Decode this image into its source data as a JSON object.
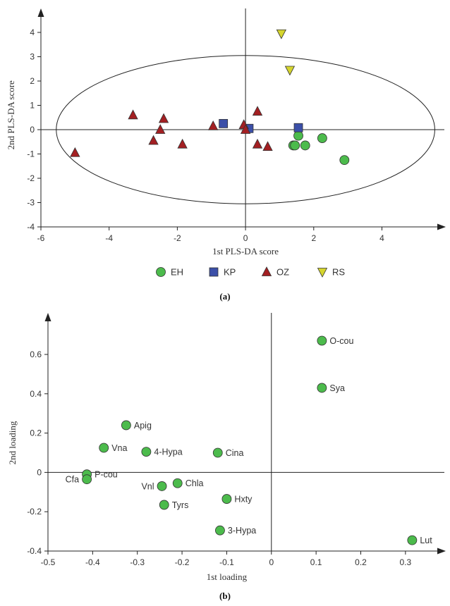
{
  "colors": {
    "EH": "#4cbb4c",
    "KP": "#3b4fa8",
    "OZ": "#a31f22",
    "RS": "#d5d52e",
    "axis": "#222222"
  },
  "chart_data": [
    {
      "type": "scatter",
      "panel_label": "(a)",
      "xlabel": "1st PLS-DA score",
      "ylabel": "2nd PLS-DA score",
      "xlim": [
        -6,
        6
      ],
      "ylim": [
        -4,
        5
      ],
      "xticks": [
        -6,
        -4,
        -2,
        0,
        2,
        4
      ],
      "yticks": [
        -4,
        -3,
        -2,
        -1,
        0,
        1,
        2,
        3,
        4
      ],
      "ellipse": {
        "cx": 0,
        "cy": 0,
        "rx": 5.55,
        "ry": 3.05
      },
      "legend_position": "bottom",
      "series": [
        {
          "name": "EH",
          "marker": "circle",
          "points": [
            [
              1.55,
              -0.25
            ],
            [
              1.4,
              -0.65
            ],
            [
              1.45,
              -0.65
            ],
            [
              1.75,
              -0.65
            ],
            [
              2.25,
              -0.35
            ],
            [
              2.9,
              -1.25
            ]
          ]
        },
        {
          "name": "KP",
          "marker": "square",
          "points": [
            [
              -0.65,
              0.25
            ],
            [
              0.1,
              0.05
            ],
            [
              1.55,
              0.08
            ]
          ]
        },
        {
          "name": "OZ",
          "marker": "triangle-up",
          "points": [
            [
              -5.0,
              -0.95
            ],
            [
              -3.3,
              0.6
            ],
            [
              -2.4,
              0.45
            ],
            [
              -2.5,
              0.0
            ],
            [
              -2.7,
              -0.45
            ],
            [
              -1.85,
              -0.6
            ],
            [
              -0.95,
              0.15
            ],
            [
              -0.05,
              0.2
            ],
            [
              0.0,
              0.0
            ],
            [
              0.35,
              0.75
            ],
            [
              0.35,
              -0.6
            ],
            [
              0.65,
              -0.7
            ]
          ]
        },
        {
          "name": "RS",
          "marker": "triangle-down",
          "points": [
            [
              1.05,
              3.95
            ],
            [
              1.3,
              2.45
            ]
          ]
        }
      ]
    },
    {
      "type": "scatter",
      "panel_label": "(b)",
      "xlabel": "1st loading",
      "ylabel": "2nd loading",
      "xlim": [
        -0.5,
        0.38
      ],
      "ylim": [
        -0.4,
        0.8
      ],
      "xticks": [
        -0.5,
        -0.4,
        -0.3,
        -0.2,
        -0.1,
        0,
        0.1,
        0.2,
        0.3
      ],
      "xticklabels": [
        "-0.5",
        "-0.4",
        "-0.3",
        "-0.2",
        "-0.1",
        "0",
        "0.1",
        "0.2",
        "0.3"
      ],
      "yticks": [
        -0.4,
        -0.2,
        0,
        0.2,
        0.4,
        0.6
      ],
      "yticklabels": [
        "-0.4",
        "-0.2",
        "0",
        "0.2",
        "0.4",
        "0.6"
      ],
      "points": [
        {
          "label": "O-cou",
          "x": 0.113,
          "y": 0.67,
          "label_side": "right"
        },
        {
          "label": "Sya",
          "x": 0.113,
          "y": 0.43,
          "label_side": "right"
        },
        {
          "label": "Apig",
          "x": -0.325,
          "y": 0.24,
          "label_side": "right"
        },
        {
          "label": "Vna",
          "x": -0.375,
          "y": 0.125,
          "label_side": "right"
        },
        {
          "label": "4-Hypa",
          "x": -0.28,
          "y": 0.105,
          "label_side": "right"
        },
        {
          "label": "Cina",
          "x": -0.12,
          "y": 0.1,
          "label_side": "right"
        },
        {
          "label": "P-cou",
          "x": -0.413,
          "y": -0.01,
          "label_side": "right"
        },
        {
          "label": "Cfa",
          "x": -0.413,
          "y": -0.035,
          "label_side": "left"
        },
        {
          "label": "Vnl",
          "x": -0.245,
          "y": -0.07,
          "label_side": "left"
        },
        {
          "label": "Chla",
          "x": -0.21,
          "y": -0.055,
          "label_side": "right"
        },
        {
          "label": "Hxty",
          "x": -0.1,
          "y": -0.135,
          "label_side": "right"
        },
        {
          "label": "Tyrs",
          "x": -0.24,
          "y": -0.165,
          "label_side": "right"
        },
        {
          "label": "3-Hypa",
          "x": -0.115,
          "y": -0.295,
          "label_side": "right"
        },
        {
          "label": "Lut",
          "x": 0.315,
          "y": -0.345,
          "label_side": "right"
        }
      ]
    }
  ]
}
